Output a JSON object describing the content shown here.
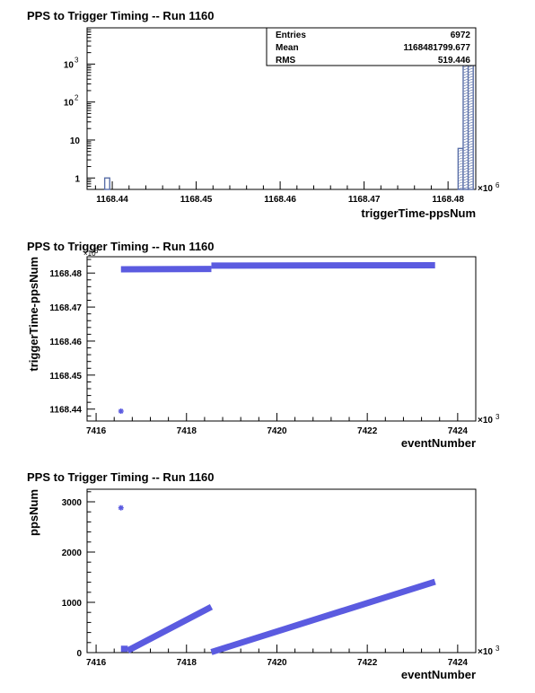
{
  "chart_data": [
    {
      "type": "bar",
      "subtype": "histogram",
      "title": "PPS to Trigger Timing -- Run 1160",
      "xlabel": "triggerTime-ppsNum",
      "ylabel": "",
      "x_multiplier": "×10",
      "x_multiplier_exp": "6",
      "xlim": [
        1168.437,
        1168.4833
      ],
      "ylim_log": [
        0.5,
        9000
      ],
      "log_y": true,
      "xticks": [
        1168.44,
        1168.45,
        1168.46,
        1168.47,
        1168.48
      ],
      "xtick_labels": [
        "1168.44",
        "1168.45",
        "1168.46",
        "1168.47",
        "1168.48"
      ],
      "yticks": [
        1,
        10,
        100,
        1000
      ],
      "ytick_labels": [
        {
          "base": "1",
          "exp": ""
        },
        {
          "base": "10",
          "exp": ""
        },
        {
          "base": "10",
          "exp": "2"
        },
        {
          "base": "10",
          "exp": "3"
        }
      ],
      "bins": [
        {
          "x0": 1168.4391,
          "x1": 1168.4397,
          "value": 1
        },
        {
          "x0": 1168.4812,
          "x1": 1168.4818,
          "value": 6
        },
        {
          "x0": 1168.4818,
          "x1": 1168.4824,
          "value": 2600
        },
        {
          "x0": 1168.4824,
          "x1": 1168.483,
          "value": 4300
        }
      ],
      "stats": [
        {
          "label": "Entries",
          "value": "6972"
        },
        {
          "label": "Mean",
          "value": "1168481799.677"
        },
        {
          "label": "RMS",
          "value": "519.446"
        }
      ],
      "colors": {
        "bar": "#5a6fa8"
      }
    },
    {
      "type": "scatter",
      "title": "PPS to Trigger Timing -- Run 1160",
      "xlabel": "eventNumber",
      "ylabel": "triggerTime-ppsNum",
      "x_multiplier": "×10",
      "x_multiplier_exp": "3",
      "y_multiplier": "×10",
      "y_multiplier_exp": "6",
      "xlim": [
        7415.8,
        7424.4
      ],
      "ylim": [
        1168.4365,
        1168.4848
      ],
      "xticks": [
        7416,
        7418,
        7420,
        7422,
        7424
      ],
      "xtick_labels": [
        "7416",
        "7418",
        "7420",
        "7422",
        "7424"
      ],
      "yticks": [
        1168.44,
        1168.45,
        1168.46,
        1168.47,
        1168.48
      ],
      "ytick_labels": [
        "1168.44",
        "1168.45",
        "1168.46",
        "1168.47",
        "1168.48"
      ],
      "segments": [
        {
          "x0": 7416.55,
          "x1": 7418.55,
          "y0": 1168.4811,
          "y1": 1168.4812
        },
        {
          "x0": 7418.55,
          "x1": 7423.5,
          "y0": 1168.4822,
          "y1": 1168.4823
        }
      ],
      "outliers": [
        {
          "x": 7416.55,
          "y": 1168.4394
        }
      ],
      "colors": {
        "marker": "#5b5be0"
      }
    },
    {
      "type": "scatter",
      "title": "PPS to Trigger Timing -- Run 1160",
      "xlabel": "eventNumber",
      "ylabel": "ppsNum",
      "x_multiplier": "×10",
      "x_multiplier_exp": "3",
      "xlim": [
        7415.8,
        7424.4
      ],
      "ylim": [
        0,
        3250
      ],
      "xticks": [
        7416,
        7418,
        7420,
        7422,
        7424
      ],
      "xtick_labels": [
        "7416",
        "7418",
        "7420",
        "7422",
        "7424"
      ],
      "yticks": [
        0,
        1000,
        2000,
        3000
      ],
      "ytick_labels": [
        "0",
        "1000",
        "2000",
        "3000"
      ],
      "segments": [
        {
          "x0": 7416.55,
          "x1": 7416.7,
          "y0": 75,
          "y1": 75
        },
        {
          "x0": 7416.7,
          "x1": 7418.55,
          "y0": 40,
          "y1": 910
        },
        {
          "x0": 7418.55,
          "x1": 7423.5,
          "y0": 10,
          "y1": 1410
        }
      ],
      "outliers": [
        {
          "x": 7416.55,
          "y": 2880
        }
      ],
      "colors": {
        "marker": "#5b5be0"
      }
    }
  ]
}
